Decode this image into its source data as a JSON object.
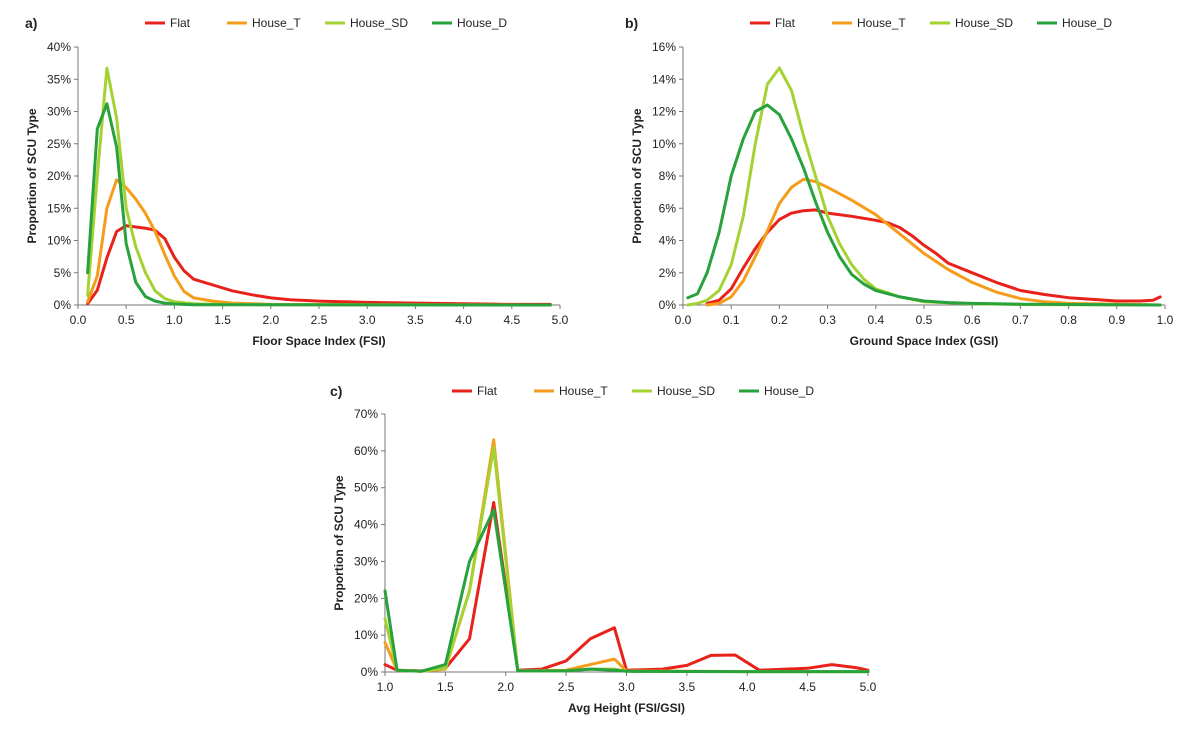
{
  "chart_data": [
    {
      "panel_label": "a)",
      "type": "line",
      "xlabel": "Floor Space Index (FSI)",
      "ylabel": "Proportion of SCU Type",
      "xlim": [
        0,
        5
      ],
      "ylim": [
        0,
        40
      ],
      "x_ticks": [
        "0.0",
        "0.5",
        "1.0",
        "1.5",
        "2.0",
        "2.5",
        "3.0",
        "3.5",
        "4.0",
        "4.5",
        "5.0"
      ],
      "y_ticks": [
        "0%",
        "5%",
        "10%",
        "15%",
        "20%",
        "25%",
        "30%",
        "35%",
        "40%"
      ],
      "legend": [
        "Flat",
        "House_T",
        "House_SD",
        "House_D"
      ],
      "series": [
        {
          "name": "Flat",
          "color": "#e8221b",
          "points": [
            [
              0.1,
              0.2
            ],
            [
              0.2,
              2.3
            ],
            [
              0.3,
              7.3
            ],
            [
              0.4,
              11.4
            ],
            [
              0.5,
              12.3
            ],
            [
              0.6,
              12.1
            ],
            [
              0.7,
              11.9
            ],
            [
              0.8,
              11.6
            ],
            [
              0.9,
              10.3
            ],
            [
              1.0,
              7.4
            ],
            [
              1.1,
              5.3
            ],
            [
              1.2,
              4.0
            ],
            [
              1.4,
              3.1
            ],
            [
              1.6,
              2.2
            ],
            [
              1.8,
              1.6
            ],
            [
              2.0,
              1.1
            ],
            [
              2.2,
              0.8
            ],
            [
              2.5,
              0.6
            ],
            [
              3.0,
              0.4
            ],
            [
              3.5,
              0.3
            ],
            [
              4.0,
              0.2
            ],
            [
              4.5,
              0.1
            ],
            [
              4.9,
              0.1
            ]
          ]
        },
        {
          "name": "House_T",
          "color": "#f59c1a",
          "points": [
            [
              0.1,
              0.5
            ],
            [
              0.2,
              4.5
            ],
            [
              0.3,
              15.0
            ],
            [
              0.4,
              19.4
            ],
            [
              0.5,
              18.2
            ],
            [
              0.6,
              16.4
            ],
            [
              0.7,
              14.2
            ],
            [
              0.8,
              11.4
            ],
            [
              0.9,
              7.8
            ],
            [
              1.0,
              4.5
            ],
            [
              1.1,
              2.1
            ],
            [
              1.2,
              1.1
            ],
            [
              1.4,
              0.6
            ],
            [
              1.6,
              0.3
            ],
            [
              1.8,
              0.2
            ],
            [
              2.0,
              0.1
            ],
            [
              3.0,
              0.05
            ],
            [
              4.9,
              0.0
            ]
          ]
        },
        {
          "name": "House_SD",
          "color": "#a4d233",
          "points": [
            [
              0.1,
              1.5
            ],
            [
              0.2,
              20.0
            ],
            [
              0.3,
              36.7
            ],
            [
              0.4,
              29.0
            ],
            [
              0.5,
              15.0
            ],
            [
              0.6,
              9.0
            ],
            [
              0.7,
              5.0
            ],
            [
              0.8,
              2.2
            ],
            [
              0.9,
              1.0
            ],
            [
              1.0,
              0.5
            ],
            [
              1.2,
              0.2
            ],
            [
              1.5,
              0.1
            ],
            [
              2.0,
              0.05
            ],
            [
              4.9,
              0.0
            ]
          ]
        },
        {
          "name": "House_D",
          "color": "#28a23c",
          "points": [
            [
              0.1,
              5.0
            ],
            [
              0.2,
              27.3
            ],
            [
              0.3,
              31.2
            ],
            [
              0.4,
              24.5
            ],
            [
              0.5,
              9.5
            ],
            [
              0.6,
              3.5
            ],
            [
              0.7,
              1.3
            ],
            [
              0.8,
              0.6
            ],
            [
              0.9,
              0.3
            ],
            [
              1.0,
              0.15
            ],
            [
              1.2,
              0.05
            ],
            [
              4.9,
              0.0
            ]
          ]
        }
      ]
    },
    {
      "panel_label": "b)",
      "type": "line",
      "xlabel": "Ground Space Index (GSI)",
      "ylabel": "Proportion of SCU Type",
      "xlim": [
        0,
        1
      ],
      "ylim": [
        0,
        16
      ],
      "x_ticks": [
        "0.0",
        "0.1",
        "0.2",
        "0.3",
        "0.4",
        "0.5",
        "0.6",
        "0.7",
        "0.8",
        "0.9",
        "1.0"
      ],
      "y_ticks": [
        "0%",
        "2%",
        "4%",
        "6%",
        "8%",
        "10%",
        "12%",
        "14%",
        "16%"
      ],
      "legend": [
        "Flat",
        "House_T",
        "House_SD",
        "House_D"
      ],
      "series": [
        {
          "name": "Flat",
          "color": "#e8221b",
          "points": [
            [
              0.05,
              0.1
            ],
            [
              0.075,
              0.3
            ],
            [
              0.1,
              1.0
            ],
            [
              0.125,
              2.3
            ],
            [
              0.15,
              3.5
            ],
            [
              0.175,
              4.5
            ],
            [
              0.2,
              5.3
            ],
            [
              0.225,
              5.7
            ],
            [
              0.25,
              5.85
            ],
            [
              0.275,
              5.9
            ],
            [
              0.3,
              5.7
            ],
            [
              0.35,
              5.5
            ],
            [
              0.4,
              5.25
            ],
            [
              0.425,
              5.1
            ],
            [
              0.45,
              4.8
            ],
            [
              0.475,
              4.3
            ],
            [
              0.5,
              3.7
            ],
            [
              0.525,
              3.2
            ],
            [
              0.55,
              2.6
            ],
            [
              0.6,
              2.0
            ],
            [
              0.65,
              1.4
            ],
            [
              0.7,
              0.9
            ],
            [
              0.75,
              0.65
            ],
            [
              0.8,
              0.45
            ],
            [
              0.85,
              0.35
            ],
            [
              0.9,
              0.25
            ],
            [
              0.95,
              0.25
            ],
            [
              0.975,
              0.3
            ],
            [
              0.99,
              0.5
            ]
          ]
        },
        {
          "name": "House_T",
          "color": "#f59c1a",
          "points": [
            [
              0.05,
              0.0
            ],
            [
              0.075,
              0.1
            ],
            [
              0.1,
              0.5
            ],
            [
              0.125,
              1.5
            ],
            [
              0.15,
              3.0
            ],
            [
              0.175,
              4.6
            ],
            [
              0.2,
              6.3
            ],
            [
              0.225,
              7.3
            ],
            [
              0.25,
              7.8
            ],
            [
              0.275,
              7.65
            ],
            [
              0.3,
              7.3
            ],
            [
              0.35,
              6.5
            ],
            [
              0.4,
              5.6
            ],
            [
              0.45,
              4.4
            ],
            [
              0.5,
              3.2
            ],
            [
              0.55,
              2.2
            ],
            [
              0.6,
              1.4
            ],
            [
              0.65,
              0.8
            ],
            [
              0.7,
              0.4
            ],
            [
              0.75,
              0.2
            ],
            [
              0.8,
              0.1
            ],
            [
              0.9,
              0.05
            ],
            [
              0.99,
              0.0
            ]
          ]
        },
        {
          "name": "House_SD",
          "color": "#a4d233",
          "points": [
            [
              0.01,
              0.0
            ],
            [
              0.03,
              0.1
            ],
            [
              0.05,
              0.3
            ],
            [
              0.075,
              0.9
            ],
            [
              0.1,
              2.5
            ],
            [
              0.125,
              5.5
            ],
            [
              0.15,
              10.0
            ],
            [
              0.175,
              13.7
            ],
            [
              0.2,
              14.7
            ],
            [
              0.225,
              13.3
            ],
            [
              0.25,
              10.5
            ],
            [
              0.275,
              8.0
            ],
            [
              0.3,
              5.5
            ],
            [
              0.325,
              3.8
            ],
            [
              0.35,
              2.5
            ],
            [
              0.375,
              1.6
            ],
            [
              0.4,
              1.0
            ],
            [
              0.45,
              0.5
            ],
            [
              0.5,
              0.2
            ],
            [
              0.6,
              0.08
            ],
            [
              0.7,
              0.03
            ],
            [
              0.99,
              0.0
            ]
          ]
        },
        {
          "name": "House_D",
          "color": "#28a23c",
          "points": [
            [
              0.01,
              0.45
            ],
            [
              0.03,
              0.7
            ],
            [
              0.05,
              2.0
            ],
            [
              0.075,
              4.5
            ],
            [
              0.1,
              8.0
            ],
            [
              0.125,
              10.3
            ],
            [
              0.15,
              12.0
            ],
            [
              0.175,
              12.4
            ],
            [
              0.2,
              11.8
            ],
            [
              0.225,
              10.3
            ],
            [
              0.25,
              8.5
            ],
            [
              0.275,
              6.4
            ],
            [
              0.3,
              4.5
            ],
            [
              0.325,
              3.0
            ],
            [
              0.35,
              1.9
            ],
            [
              0.375,
              1.3
            ],
            [
              0.4,
              0.9
            ],
            [
              0.45,
              0.5
            ],
            [
              0.5,
              0.25
            ],
            [
              0.55,
              0.15
            ],
            [
              0.6,
              0.1
            ],
            [
              0.7,
              0.05
            ],
            [
              0.99,
              0.0
            ]
          ]
        }
      ]
    },
    {
      "panel_label": "c)",
      "type": "line",
      "xlabel": "Avg Height (FSI/GSI)",
      "ylabel": "Proportion of SCU Type",
      "xlim": [
        1,
        5
      ],
      "ylim": [
        0,
        70
      ],
      "x_ticks": [
        "1.0",
        "1.5",
        "2.0",
        "2.5",
        "3.0",
        "3.5",
        "4.0",
        "4.5",
        "5.0"
      ],
      "y_ticks": [
        "0%",
        "10%",
        "20%",
        "30%",
        "40%",
        "50%",
        "60%",
        "70%"
      ],
      "legend": [
        "Flat",
        "House_T",
        "House_SD",
        "House_D"
      ],
      "series": [
        {
          "name": "Flat",
          "color": "#e8221b",
          "points": [
            [
              1.0,
              2.0
            ],
            [
              1.1,
              0.5
            ],
            [
              1.3,
              0.3
            ],
            [
              1.5,
              1.0
            ],
            [
              1.7,
              9.0
            ],
            [
              1.9,
              46.0
            ],
            [
              2.1,
              0.5
            ],
            [
              2.3,
              0.8
            ],
            [
              2.5,
              3.0
            ],
            [
              2.7,
              9.0
            ],
            [
              2.9,
              12.0
            ],
            [
              3.0,
              0.5
            ],
            [
              3.3,
              0.8
            ],
            [
              3.5,
              1.8
            ],
            [
              3.7,
              4.5
            ],
            [
              3.9,
              4.6
            ],
            [
              4.1,
              0.5
            ],
            [
              4.5,
              1.0
            ],
            [
              4.7,
              2.0
            ],
            [
              4.9,
              1.2
            ],
            [
              5.0,
              0.5
            ]
          ]
        },
        {
          "name": "House_T",
          "color": "#f59c1a",
          "points": [
            [
              1.0,
              8.0
            ],
            [
              1.1,
              0.5
            ],
            [
              1.3,
              0.2
            ],
            [
              1.5,
              0.8
            ],
            [
              1.7,
              22.0
            ],
            [
              1.9,
              63.0
            ],
            [
              2.1,
              0.3
            ],
            [
              2.5,
              0.5
            ],
            [
              2.7,
              2.0
            ],
            [
              2.9,
              3.5
            ],
            [
              3.0,
              0.3
            ],
            [
              3.5,
              0.2
            ],
            [
              4.0,
              0.1
            ],
            [
              5.0,
              0.1
            ]
          ]
        },
        {
          "name": "House_SD",
          "color": "#a4d233",
          "points": [
            [
              1.0,
              14.5
            ],
            [
              1.1,
              0.5
            ],
            [
              1.3,
              0.2
            ],
            [
              1.5,
              1.0
            ],
            [
              1.7,
              22.0
            ],
            [
              1.9,
              61.0
            ],
            [
              2.1,
              0.3
            ],
            [
              2.5,
              0.3
            ],
            [
              2.7,
              0.8
            ],
            [
              2.9,
              0.8
            ],
            [
              3.0,
              0.2
            ],
            [
              4.0,
              0.1
            ],
            [
              5.0,
              0.1
            ]
          ]
        },
        {
          "name": "House_D",
          "color": "#28a23c",
          "points": [
            [
              1.0,
              22.0
            ],
            [
              1.1,
              0.5
            ],
            [
              1.3,
              0.2
            ],
            [
              1.5,
              2.0
            ],
            [
              1.7,
              30.0
            ],
            [
              1.9,
              44.0
            ],
            [
              2.1,
              0.3
            ],
            [
              2.5,
              0.3
            ],
            [
              2.7,
              0.8
            ],
            [
              2.9,
              0.5
            ],
            [
              3.0,
              0.2
            ],
            [
              4.0,
              0.1
            ],
            [
              5.0,
              0.1
            ]
          ]
        }
      ]
    }
  ]
}
